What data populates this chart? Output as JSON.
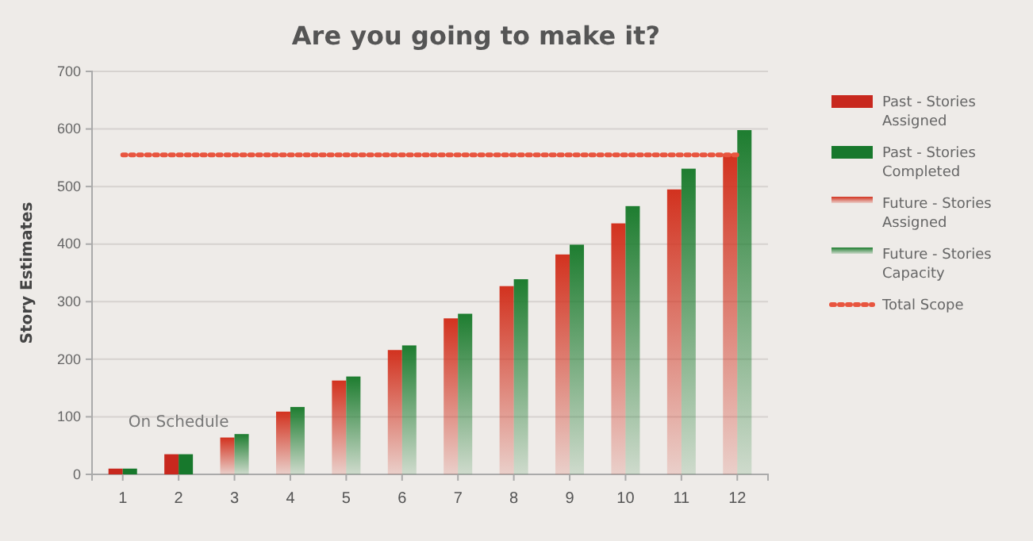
{
  "chart_data": {
    "type": "bar",
    "title": "Are you going to make it?",
    "ylabel": "Story  Estimates",
    "categories": [
      "1",
      "2",
      "3",
      "4",
      "5",
      "6",
      "7",
      "8",
      "9",
      "10",
      "11",
      "12"
    ],
    "series": [
      {
        "name": "Past - Stories Assigned",
        "color": "#c8281e",
        "values": [
          10,
          35,
          null,
          null,
          null,
          null,
          null,
          null,
          null,
          null,
          null,
          null
        ]
      },
      {
        "name": "Past - Stories Completed",
        "color": "#17782c",
        "values": [
          10,
          35,
          null,
          null,
          null,
          null,
          null,
          null,
          null,
          null,
          null,
          null
        ]
      },
      {
        "name": "Future - Stories Assigned",
        "color": "#d2321f",
        "values": [
          null,
          null,
          64,
          109,
          163,
          216,
          271,
          327,
          382,
          436,
          495,
          557
        ]
      },
      {
        "name": "Future - Stories Capacity",
        "color": "#1e7d30",
        "values": [
          null,
          null,
          70,
          117,
          170,
          224,
          279,
          339,
          399,
          466,
          531,
          598
        ]
      },
      {
        "name": "Total Scope",
        "type": "line",
        "line_style": "dotted",
        "marker": "none",
        "color": "#e8553f",
        "values": [
          555,
          555,
          555,
          555,
          555,
          555,
          555,
          555,
          555,
          555,
          555,
          555
        ]
      }
    ],
    "annotations": [
      "On Schedule"
    ],
    "ylim": [
      0,
      700
    ],
    "yticks": [
      0,
      100,
      200,
      300,
      400,
      500,
      600,
      700
    ],
    "grid": "y",
    "legend": "right"
  }
}
